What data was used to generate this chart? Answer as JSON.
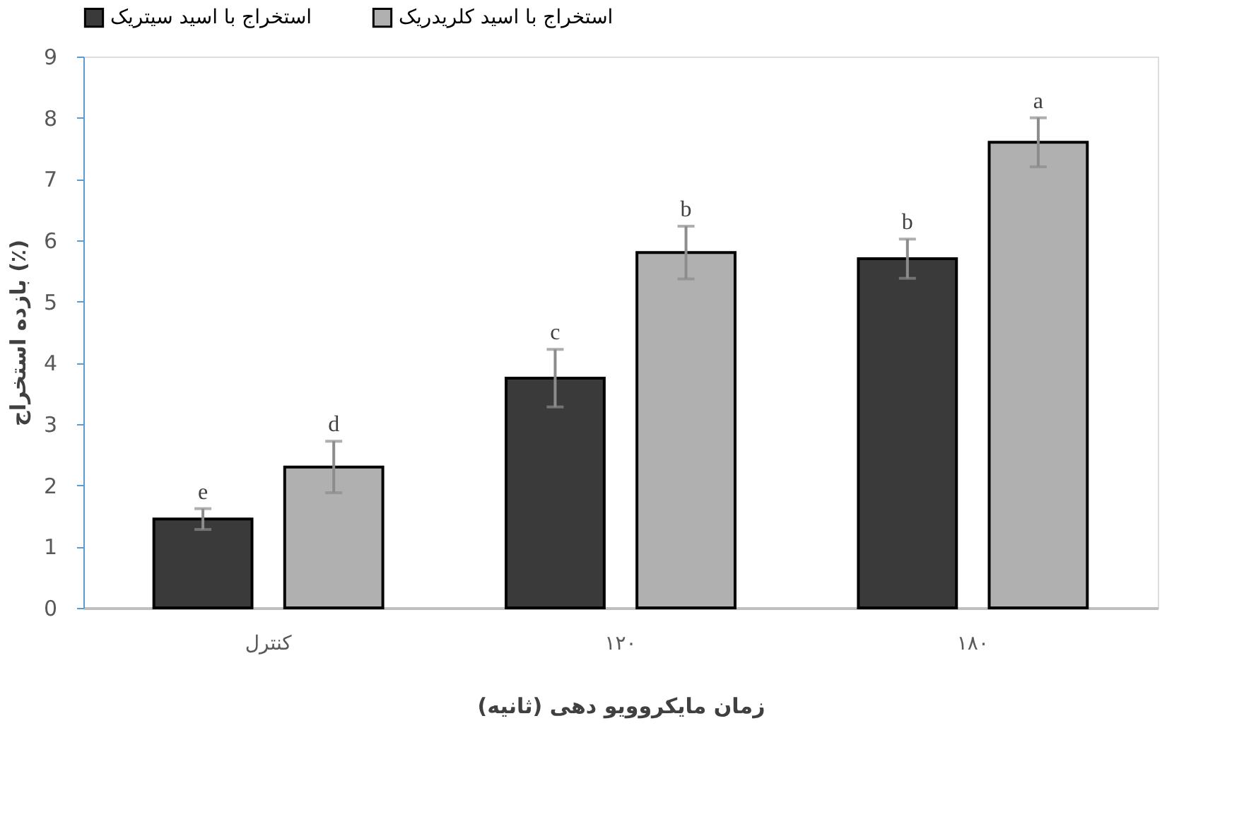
{
  "chart_data": {
    "type": "bar",
    "xlabel": "زمان مایکروویو دهی (ثانیه)",
    "ylabel": "بازده استخراج (٪)",
    "categories": [
      "کنترل",
      "۱۲۰",
      "۱۸۰"
    ],
    "series": [
      {
        "name": "استخراج با اسید سیتریک",
        "color": "#3a3a3a",
        "values": [
          1.45,
          3.75,
          5.7
        ],
        "errors": [
          0.17,
          0.47,
          0.32
        ]
      },
      {
        "name": "استخراج با اسید کلریدریک",
        "color": "#b0b0b0",
        "values": [
          2.3,
          5.8,
          7.6
        ],
        "errors": [
          0.42,
          0.43,
          0.4
        ]
      }
    ],
    "annotations": [
      "e",
      "d",
      "c",
      "b",
      "b",
      "a"
    ],
    "ylim": [
      0,
      9
    ],
    "yticks": [
      0,
      1,
      2,
      3,
      4,
      5,
      6,
      7,
      8,
      9
    ],
    "grid": false,
    "legend": "top"
  }
}
